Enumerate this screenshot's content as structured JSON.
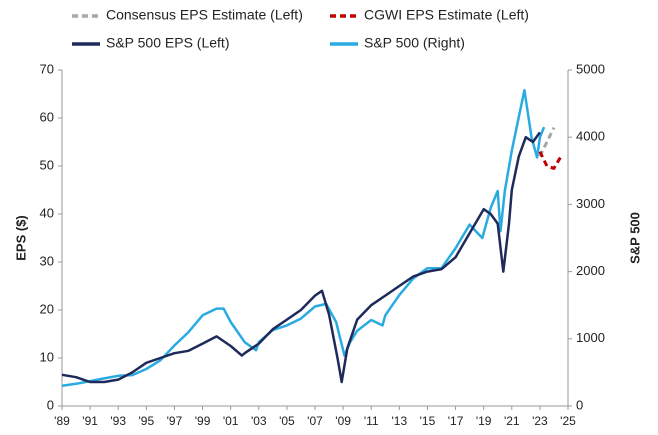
{
  "chart_data": {
    "type": "line",
    "ylabel": "EPS ($)",
    "y2label": "S&P 500",
    "xlim": [
      1989,
      2025
    ],
    "xticks": [
      {
        "value": 1989,
        "label": "'89"
      },
      {
        "value": 1991,
        "label": "'91"
      },
      {
        "value": 1993,
        "label": "'93"
      },
      {
        "value": 1995,
        "label": "'95"
      },
      {
        "value": 1997,
        "label": "'97"
      },
      {
        "value": 1999,
        "label": "'99"
      },
      {
        "value": 2001,
        "label": "'01"
      },
      {
        "value": 2003,
        "label": "'03"
      },
      {
        "value": 2005,
        "label": "'05"
      },
      {
        "value": 2007,
        "label": "'07"
      },
      {
        "value": 2009,
        "label": "'09"
      },
      {
        "value": 2011,
        "label": "'11"
      },
      {
        "value": 2013,
        "label": "'13"
      },
      {
        "value": 2015,
        "label": "'15"
      },
      {
        "value": 2017,
        "label": "'17"
      },
      {
        "value": 2019,
        "label": "'19"
      },
      {
        "value": 2021,
        "label": "'21"
      },
      {
        "value": 2023,
        "label": "'23"
      },
      {
        "value": 2025,
        "label": "'25"
      }
    ],
    "ylim": [
      0,
      70
    ],
    "yticks": [
      0,
      10,
      20,
      30,
      40,
      50,
      60,
      70
    ],
    "y2lim": [
      0,
      5000
    ],
    "y2ticks": [
      0,
      1000,
      2000,
      3000,
      4000,
      5000
    ],
    "series": [
      {
        "name": "Consensus EPS Estimate (Left)",
        "color": "#a6a6a6",
        "dash": true,
        "axis": "y",
        "x": [
          2023,
          2023.5,
          2024
        ],
        "values": [
          52,
          55,
          58
        ]
      },
      {
        "name": "CGWI EPS Estimate (Left)",
        "color": "#c00000",
        "dash": true,
        "axis": "y",
        "x": [
          2023,
          2023.5,
          2024,
          2024.5
        ],
        "values": [
          53,
          50,
          49.5,
          52
        ]
      },
      {
        "name": "S&P 500 EPS (Left)",
        "color": "#1f2a5a",
        "dash": false,
        "axis": "y",
        "x": [
          1989,
          1990,
          1991,
          1992,
          1993,
          1994,
          1995,
          1996,
          1997,
          1998,
          1999,
          2000,
          2001,
          2001.8,
          2002,
          2003,
          2004,
          2005,
          2006,
          2007,
          2007.5,
          2008,
          2008.6,
          2008.9,
          2009.3,
          2010,
          2011,
          2012,
          2013,
          2014,
          2015,
          2016,
          2017,
          2018,
          2019,
          2019.5,
          2020,
          2020.4,
          2020.8,
          2021,
          2021.5,
          2022,
          2022.5,
          2023
        ],
        "values": [
          6.5,
          6,
          5,
          5,
          5.5,
          7,
          9,
          10,
          11,
          11.5,
          13,
          14.5,
          12.5,
          10.5,
          11,
          13,
          16,
          18,
          20,
          23,
          24,
          19,
          10,
          5,
          12,
          18,
          21,
          23,
          25,
          27,
          28,
          28.5,
          31,
          36,
          41,
          40,
          38,
          28,
          38,
          45,
          52,
          56,
          55,
          57
        ]
      },
      {
        "name": "S&P 500 (Right)",
        "color": "#29abe2",
        "dash": false,
        "axis": "y2",
        "x": [
          1989,
          1990,
          1991,
          1992,
          1993,
          1994,
          1995,
          1996,
          1997,
          1998,
          1999,
          2000,
          2000.5,
          2001,
          2002,
          2002.8,
          2003,
          2004,
          2005,
          2006,
          2007,
          2007.8,
          2008.5,
          2009.1,
          2009.5,
          2010,
          2011,
          2011.8,
          2012,
          2013,
          2014,
          2015,
          2016,
          2017,
          2018,
          2018.9,
          2019.5,
          2020,
          2020.2,
          2020.5,
          2021,
          2021.9,
          2022.4,
          2022.8,
          2023,
          2023.3
        ],
        "values": [
          300,
          330,
          370,
          410,
          450,
          460,
          550,
          680,
          900,
          1100,
          1350,
          1450,
          1450,
          1250,
          950,
          830,
          950,
          1130,
          1200,
          1300,
          1480,
          1520,
          1250,
          750,
          950,
          1120,
          1280,
          1200,
          1350,
          1650,
          1900,
          2050,
          2050,
          2350,
          2700,
          2500,
          2950,
          3200,
          2600,
          3200,
          3800,
          4700,
          4000,
          3700,
          4000,
          4150
        ]
      }
    ]
  }
}
